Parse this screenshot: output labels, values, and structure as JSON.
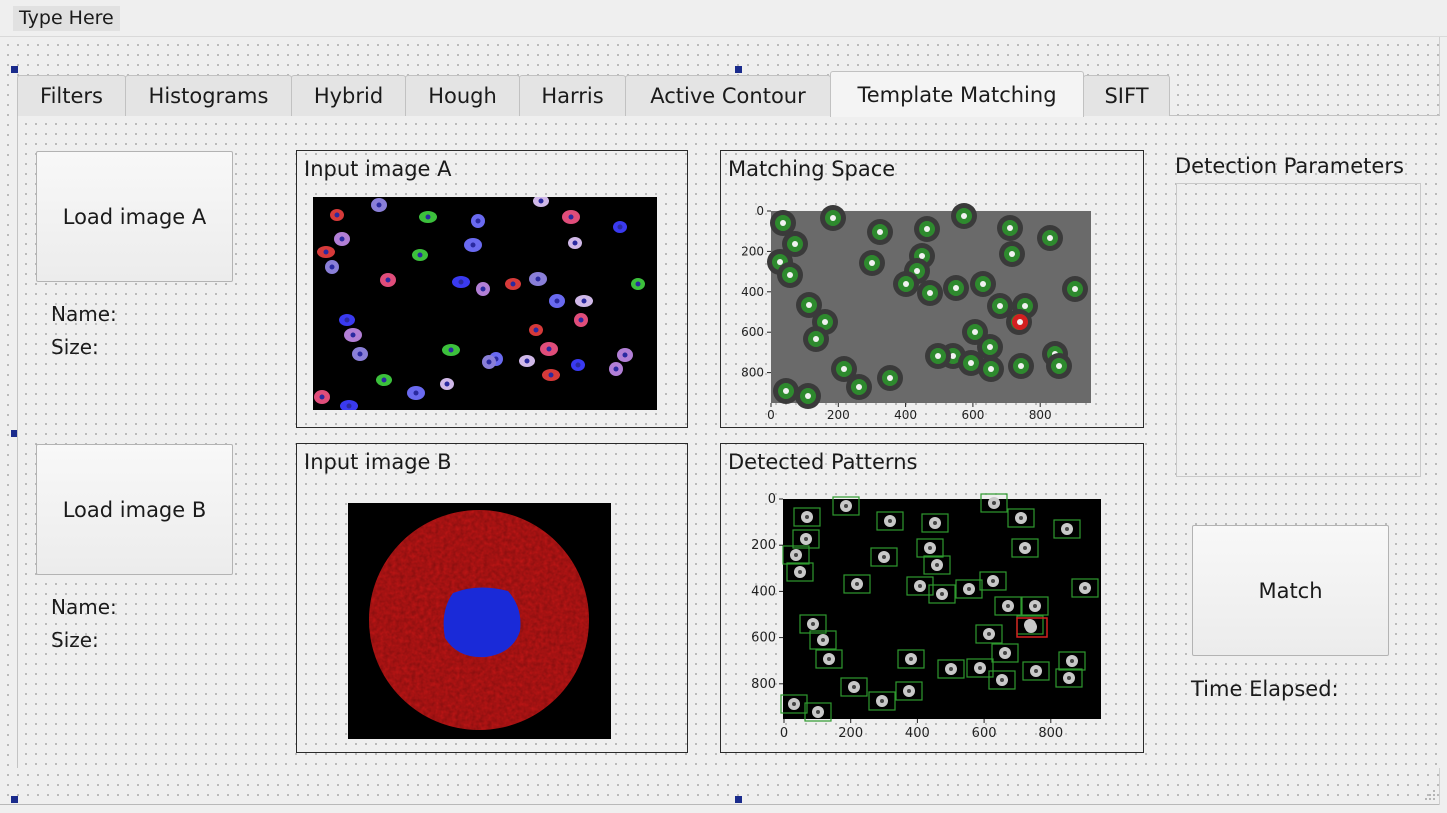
{
  "menubar": {
    "item": "Type Here"
  },
  "tabs": [
    {
      "label": "Filters"
    },
    {
      "label": "Histograms"
    },
    {
      "label": "Hybrid"
    },
    {
      "label": "Hough"
    },
    {
      "label": "Harris"
    },
    {
      "label": "Active Contour"
    },
    {
      "label": "Template Matching",
      "active": true
    },
    {
      "label": "SIFT"
    }
  ],
  "left": {
    "load_a": "Load image A",
    "name_a": "Name:",
    "size_a": "Size:",
    "load_b": "Load image B",
    "name_b": "Name:",
    "size_b": "Size:"
  },
  "groups": {
    "input_a": "Input image A",
    "input_b": "Input image B",
    "matching_space": "Matching Space",
    "detected_patterns": "Detected Patterns"
  },
  "right": {
    "detection_parameters": "Detection Parameters",
    "match_button": "Match",
    "time_elapsed": "Time Elapsed:"
  },
  "plots": {
    "matching_space": {
      "x_ticks": [
        "0",
        "200",
        "400",
        "600",
        "800"
      ],
      "y_ticks": [
        "0",
        "200",
        "400",
        "600",
        "800"
      ]
    },
    "detected_patterns": {
      "x_ticks": [
        "0",
        "200",
        "400",
        "600",
        "800"
      ],
      "y_ticks": [
        "0",
        "200",
        "400",
        "600",
        "800"
      ]
    }
  },
  "colors": {
    "detection_box": "#2e9a2e",
    "best_match_box": "#d42020",
    "cell_red": "#c31616",
    "nucleus_blue": "#1a2ad8"
  }
}
